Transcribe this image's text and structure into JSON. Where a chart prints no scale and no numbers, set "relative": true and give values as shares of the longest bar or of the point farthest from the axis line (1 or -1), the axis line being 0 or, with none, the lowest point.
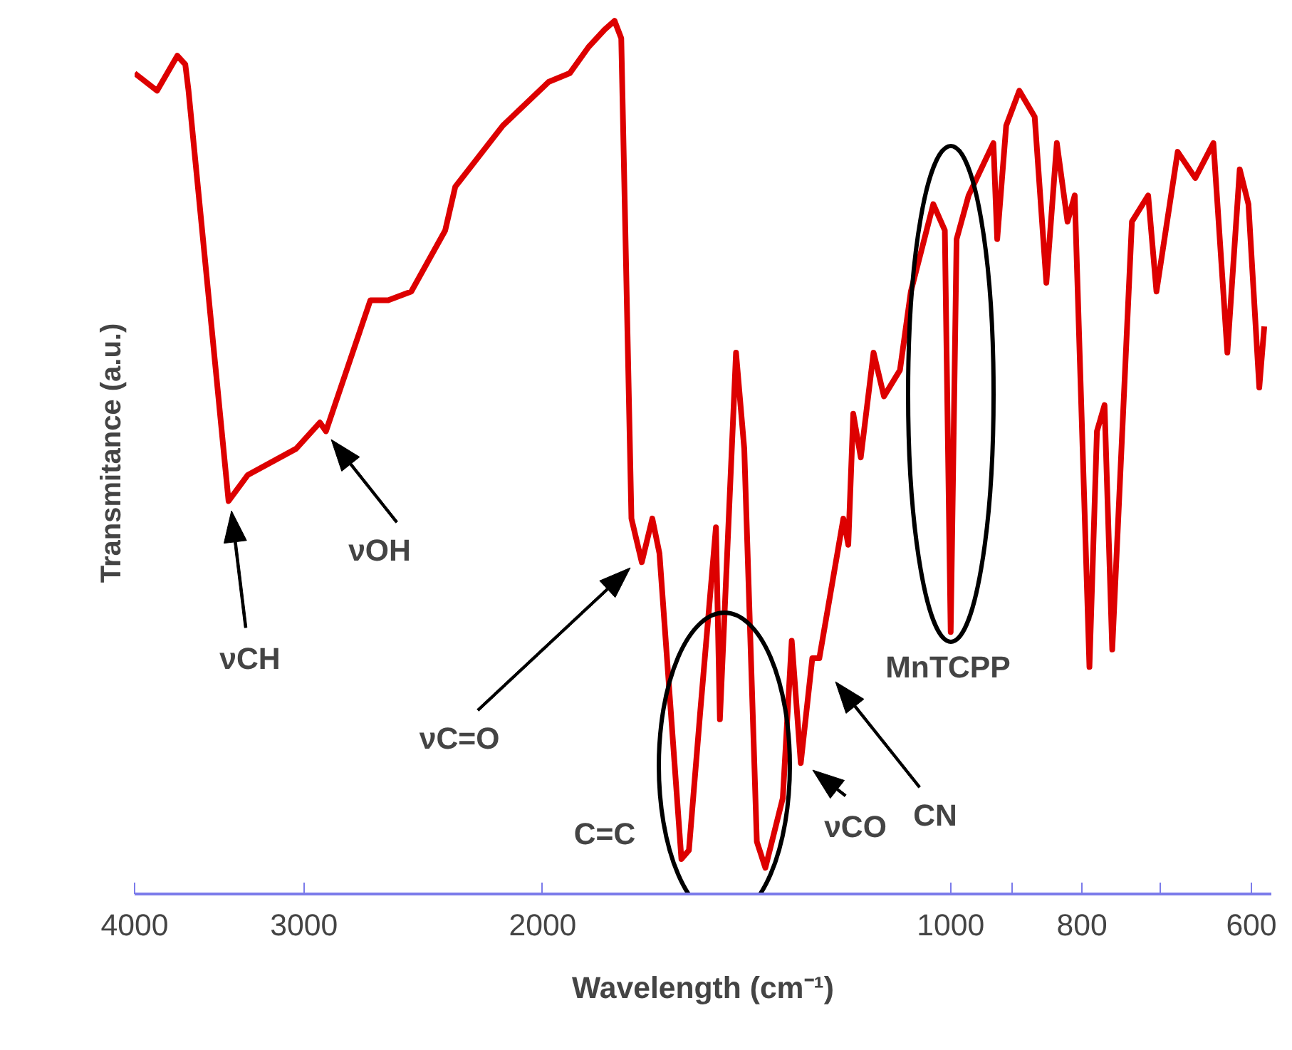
{
  "chart_data": {
    "type": "line",
    "relative": true,
    "log": "x",
    "xlabel": "Wavelength (cm⁻¹)",
    "ylabel": "Transmitance (a.u.)",
    "xlim": [
      4000,
      580
    ],
    "xticks": [
      4000,
      3000,
      2000,
      1000,
      {
        "value": 900,
        "label": null
      },
      800,
      {
        "value": 700,
        "label": null
      },
      600
    ],
    "series": [
      {
        "color": "#dd0000",
        "x": [
          4000,
          3850,
          3720,
          3670,
          3650,
          3410,
          3300,
          3040,
          2920,
          2890,
          2680,
          2600,
          2500,
          2360,
          2320,
          2140,
          1980,
          1910,
          1850,
          1800,
          1770,
          1750,
          1720,
          1690,
          1660,
          1640,
          1580,
          1560,
          1530,
          1490,
          1480,
          1440,
          1420,
          1390,
          1370,
          1330,
          1310,
          1290,
          1265,
          1250,
          1200,
          1190,
          1180,
          1165,
          1140,
          1120,
          1090,
          1070,
          1030,
          1010,
          1000,
          990,
          970,
          930,
          924,
          910,
          890,
          867,
          850,
          835,
          820,
          810,
          790,
          780,
          770,
          760,
          735,
          715,
          705,
          680,
          660,
          640,
          625,
          612,
          603,
          592,
          587
        ],
        "values": [
          0.94,
          0.92,
          0.96,
          0.95,
          0.92,
          0.45,
          0.48,
          0.51,
          0.54,
          0.53,
          0.68,
          0.68,
          0.69,
          0.76,
          0.81,
          0.88,
          0.93,
          0.94,
          0.97,
          0.99,
          1.0,
          0.98,
          0.43,
          0.38,
          0.43,
          0.39,
          0.04,
          0.05,
          0.21,
          0.42,
          0.2,
          0.62,
          0.51,
          0.06,
          0.03,
          0.11,
          0.29,
          0.15,
          0.27,
          0.27,
          0.43,
          0.4,
          0.55,
          0.5,
          0.62,
          0.57,
          0.6,
          0.69,
          0.79,
          0.76,
          0.3,
          0.75,
          0.8,
          0.86,
          0.75,
          0.88,
          0.92,
          0.89,
          0.7,
          0.86,
          0.77,
          0.8,
          0.26,
          0.53,
          0.56,
          0.28,
          0.77,
          0.8,
          0.69,
          0.85,
          0.82,
          0.86,
          0.62,
          0.83,
          0.79,
          0.58,
          0.65
        ]
      }
    ],
    "annotations": [
      "νCH",
      "νOH",
      "νC=O",
      "C=C",
      "νCO",
      "CN",
      "MnTCPP"
    ]
  }
}
